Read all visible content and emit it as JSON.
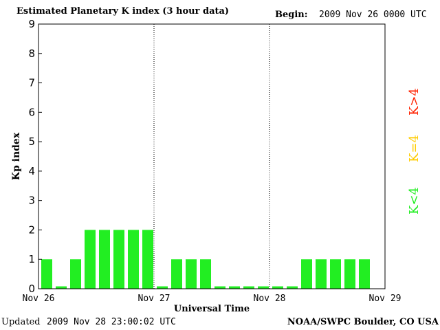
{
  "header": {
    "title": "Estimated Planetary K index (3 hour data)",
    "begin_label": "Begin:",
    "begin_value": "2009 Nov 26 0000 UTC"
  },
  "footer": {
    "updated_label": "Updated",
    "updated_value": "2009 Nov 28 23:00:02 UTC",
    "source": "NOAA/SWPC Boulder, CO USA"
  },
  "legend": [
    {
      "label": "K>4",
      "color": "#ff2200"
    },
    {
      "label": "K=4",
      "color": "#ffcc00"
    },
    {
      "label": "K<4",
      "color": "#22ee22"
    }
  ],
  "chart_data": {
    "type": "bar",
    "title": "Estimated Planetary K index (3 hour data)",
    "ylabel": "Kp index",
    "xlabel": "Universal Time",
    "ylim": [
      0,
      9
    ],
    "yticks": [
      "0",
      "1",
      "2",
      "3",
      "4",
      "5",
      "6",
      "7",
      "8",
      "9"
    ],
    "xticks": [
      "Nov 26",
      "Nov 27",
      "Nov 28",
      "Nov 29"
    ],
    "bar_color": "#22ee22",
    "series": [
      {
        "values": [
          1,
          0,
          1,
          2,
          2,
          2,
          2,
          2,
          0,
          1,
          1,
          1,
          0,
          0,
          0,
          0,
          0,
          0,
          1,
          1,
          1,
          1,
          1
        ]
      }
    ]
  }
}
